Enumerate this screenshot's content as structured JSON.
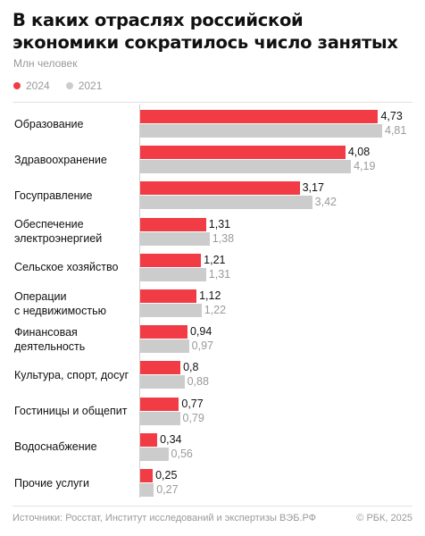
{
  "title": "В каких отраслях российской экономики сократилось число занятых",
  "subtitle": "Млн человек",
  "colors": {
    "y2024": "#f23c45",
    "y2021": "#cccccc",
    "label2024": "#111111",
    "label2021": "#9a9a9a"
  },
  "legend": [
    {
      "name": "2024",
      "color": "#f23c45"
    },
    {
      "name": "2021",
      "color": "#cccccc"
    }
  ],
  "chart_data": {
    "type": "bar",
    "orientation": "horizontal",
    "title": "В каких отраслях российской экономики сократилось число занятых",
    "subtitle": "Млн человек",
    "categories": [
      "Образование",
      "Здравоохранение",
      "Госуправление",
      "Обеспечение электроэнергией",
      "Сельское хозяйство",
      "Операции с недвижимостью",
      "Финансовая деятельность",
      "Культура, спорт, досуг",
      "Гостиницы и общепит",
      "Водоснабжение",
      "Прочие услуги"
    ],
    "category_lines": [
      [
        "Образование"
      ],
      [
        "Здравоохранение"
      ],
      [
        "Госуправление"
      ],
      [
        "Обеспечение",
        "электроэнергией"
      ],
      [
        "Сельское хозяйство"
      ],
      [
        "Операции",
        "с недвижимостью"
      ],
      [
        "Финансовая",
        "деятельность"
      ],
      [
        "Культура, спорт, досуг"
      ],
      [
        "Гостиницы и общепит"
      ],
      [
        "Водоснабжение"
      ],
      [
        "Прочие услуги"
      ]
    ],
    "series": [
      {
        "name": "2024",
        "values": [
          4.73,
          4.08,
          3.17,
          1.31,
          1.21,
          1.12,
          0.94,
          0.8,
          0.77,
          0.34,
          0.25
        ],
        "labels": [
          "4,73",
          "4,08",
          "3,17",
          "1,31",
          "1,21",
          "1,12",
          "0,94",
          "0,8",
          "0,77",
          "0,34",
          "0,25"
        ]
      },
      {
        "name": "2021",
        "values": [
          4.81,
          4.19,
          3.42,
          1.38,
          1.31,
          1.22,
          0.97,
          0.88,
          0.79,
          0.56,
          0.27
        ],
        "labels": [
          "4,81",
          "4,19",
          "3,42",
          "1,38",
          "1,31",
          "1,22",
          "0,97",
          "0,88",
          "0,79",
          "0,56",
          "0,27"
        ]
      }
    ],
    "xlim": [
      0,
      4.81
    ],
    "grid": false,
    "legend_position": "top-left"
  },
  "footer": {
    "source": "Источники: Росстат, Институт исследований и экспертизы ВЭБ.РФ",
    "copyright": "© РБК, 2025"
  }
}
